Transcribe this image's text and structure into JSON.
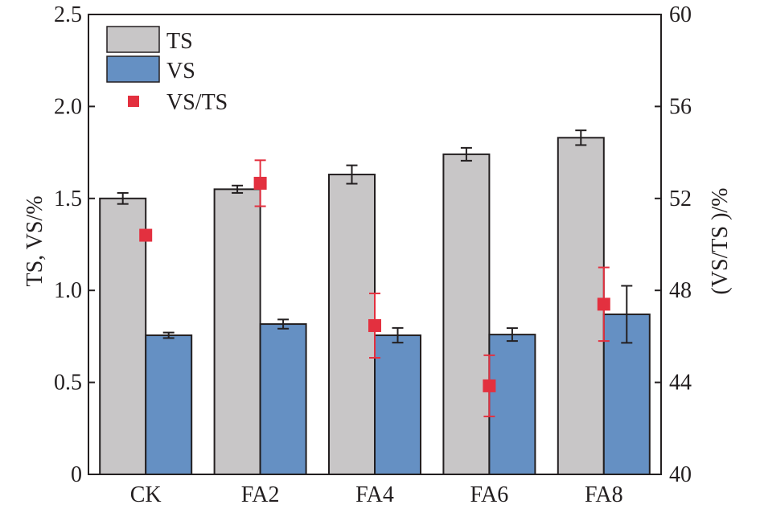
{
  "chart_data": {
    "type": "bar",
    "title": "",
    "categories": [
      "CK",
      "FA2",
      "FA4",
      "FA6",
      "FA8"
    ],
    "xlabel": "",
    "ylabel": "TS, VS/%",
    "ylabel_right": "(VS/TS )/%",
    "ylim": [
      0,
      2.5
    ],
    "ylim_right": [
      40,
      60
    ],
    "yticks": [
      "0",
      "0.5",
      "1.0",
      "1.5",
      "2.0",
      "2.5"
    ],
    "yticks_right": [
      "40",
      "44",
      "48",
      "52",
      "56",
      "60"
    ],
    "grid": false,
    "legend_position": "top-left",
    "series": [
      {
        "name": "TS",
        "kind": "bar",
        "axis": "left",
        "color": "#c8c6c7",
        "values": [
          1.5,
          1.55,
          1.63,
          1.74,
          1.83
        ],
        "errors": [
          0.03,
          0.02,
          0.05,
          0.035,
          0.04
        ]
      },
      {
        "name": "VS",
        "kind": "bar",
        "axis": "left",
        "color": "#6590c3",
        "values": [
          0.756,
          0.817,
          0.756,
          0.76,
          0.87
        ],
        "errors": [
          0.015,
          0.025,
          0.04,
          0.035,
          0.155
        ]
      },
      {
        "name": "VS/TS",
        "kind": "scatter",
        "axis": "right",
        "color": "#e3303f",
        "values": [
          50.4,
          52.66,
          46.47,
          43.85,
          47.4
        ],
        "errors": [
          0.1,
          1.0,
          1.4,
          1.33,
          1.6
        ]
      }
    ]
  }
}
